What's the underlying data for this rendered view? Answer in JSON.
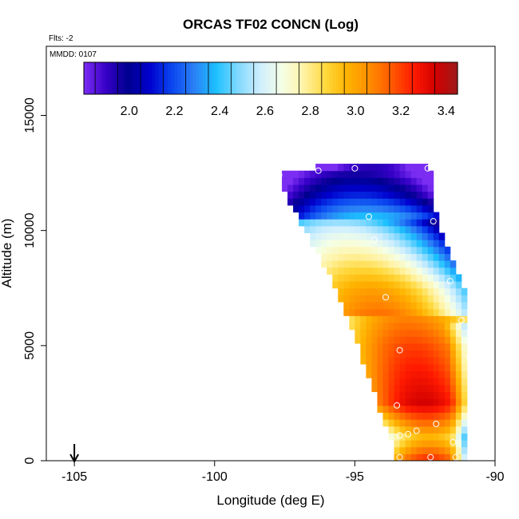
{
  "chart_data": {
    "type": "heatmap",
    "title": "ORCAS TF02 CONCN (Log)",
    "flights_label": "Flts: -2",
    "date_label": "MMDD: 0107",
    "xlabel": "Longitude (deg E)",
    "ylabel": "Altitude (m)",
    "xlim": [
      -106,
      -90
    ],
    "ylim": [
      0,
      18000
    ],
    "xticks": [
      -105,
      -100,
      -95,
      -90
    ],
    "yticks": [
      0,
      5000,
      10000,
      15000
    ],
    "colorbar": {
      "range": [
        1.8,
        3.45
      ],
      "ticks": [
        2.0,
        2.2,
        2.4,
        2.6,
        2.8,
        3.0,
        3.2,
        3.4
      ],
      "colors": [
        "#7b2df2",
        "#3700c8",
        "#00008f",
        "#0000cd",
        "#0a46f0",
        "#2a7ff5",
        "#1cc0ff",
        "#7fd8ff",
        "#cdeeff",
        "#f5ffe6",
        "#fff3a6",
        "#ffd83c",
        "#ffb300",
        "#ff8c00",
        "#ff5a00",
        "#ff1a00",
        "#d10000",
        "#9e1a1a"
      ]
    },
    "arrow_marker_longitude": -105,
    "band_nodes": [
      {
        "alt": 0,
        "lon_west": -93.6,
        "lon_east": -91.1,
        "value": 3.25
      },
      {
        "alt": 1000,
        "lon_west": -93.7,
        "lon_east": -91.0,
        "value": 2.95
      },
      {
        "alt": 2500,
        "lon_west": -94.2,
        "lon_east": -90.9,
        "value": 3.35
      },
      {
        "alt": 5000,
        "lon_west": -94.9,
        "lon_east": -90.9,
        "value": 3.2
      },
      {
        "alt": 7500,
        "lon_west": -95.7,
        "lon_east": -91.1,
        "value": 2.95
      },
      {
        "alt": 10000,
        "lon_west": -96.8,
        "lon_east": -91.9,
        "value": 2.55
      },
      {
        "alt": 11500,
        "lon_west": -97.4,
        "lon_east": -92.3,
        "value": 2.15
      },
      {
        "alt": 12500,
        "lon_west": -97.7,
        "lon_east": -92.2,
        "value": 1.95
      },
      {
        "alt": 13000,
        "lon_west": -95.0,
        "lon_east": -92.7,
        "value": 1.9
      }
    ],
    "sample_points": [
      {
        "lon": -92.8,
        "alt": 13100
      },
      {
        "lon": -92.4,
        "alt": 12700
      },
      {
        "lon": -95.0,
        "alt": 12700
      },
      {
        "lon": -96.3,
        "alt": 12600
      },
      {
        "lon": -97.7,
        "alt": 12400
      },
      {
        "lon": -94.5,
        "alt": 10600
      },
      {
        "lon": -92.2,
        "alt": 10400
      },
      {
        "lon": -94.3,
        "alt": 9600
      },
      {
        "lon": -91.6,
        "alt": 7800
      },
      {
        "lon": -93.9,
        "alt": 7100
      },
      {
        "lon": -91.2,
        "alt": 6100
      },
      {
        "lon": -93.4,
        "alt": 4800
      },
      {
        "lon": -90.9,
        "alt": 4500
      },
      {
        "lon": -93.5,
        "alt": 2400
      },
      {
        "lon": -92.1,
        "alt": 1600
      },
      {
        "lon": -92.8,
        "alt": 1300
      },
      {
        "lon": -93.1,
        "alt": 1150
      },
      {
        "lon": -93.4,
        "alt": 1100
      },
      {
        "lon": -91.5,
        "alt": 800
      },
      {
        "lon": -93.4,
        "alt": 150
      },
      {
        "lon": -92.3,
        "alt": 150
      },
      {
        "lon": -91.4,
        "alt": 150
      }
    ]
  }
}
